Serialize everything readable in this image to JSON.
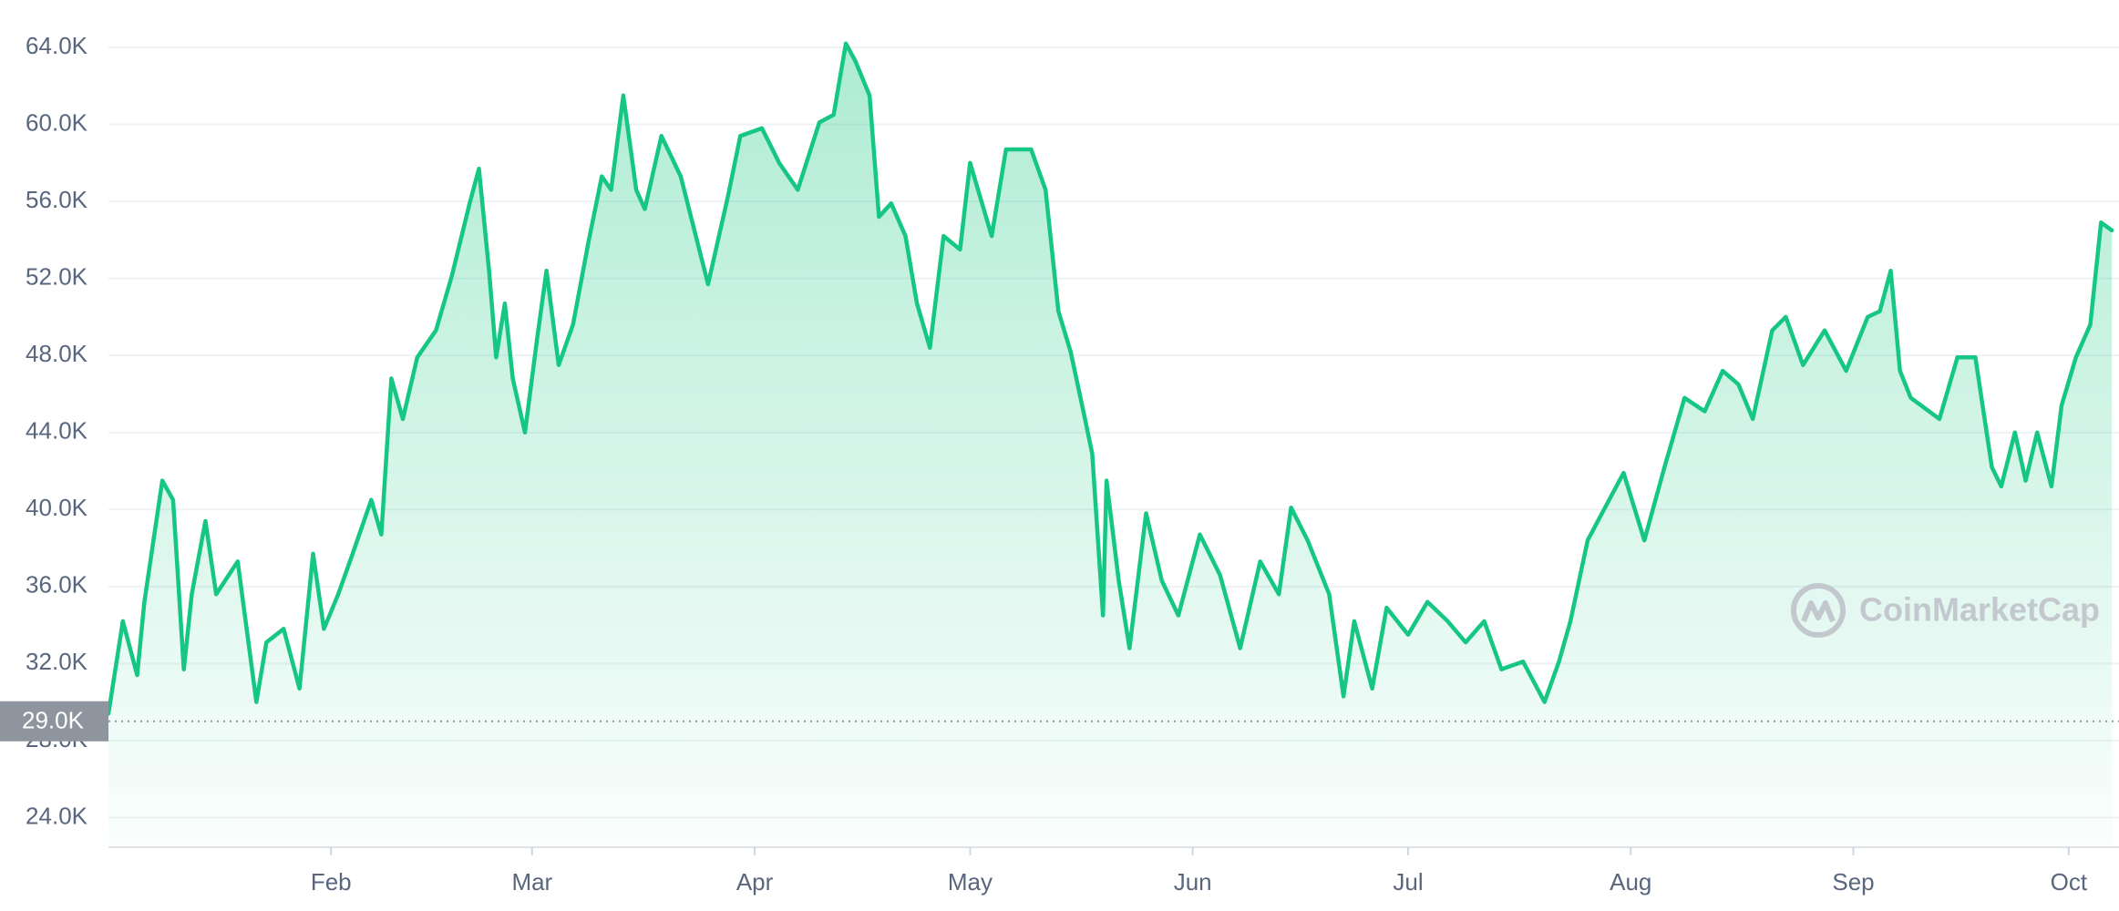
{
  "chart_data": {
    "type": "area",
    "color": "#16c784",
    "xlim": [
      0,
      280
    ],
    "xticks": [
      {
        "value": 31,
        "label": "Feb"
      },
      {
        "value": 59,
        "label": "Mar"
      },
      {
        "value": 90,
        "label": "Apr"
      },
      {
        "value": 120,
        "label": "May"
      },
      {
        "value": 151,
        "label": "Jun"
      },
      {
        "value": 181,
        "label": "Jul"
      },
      {
        "value": 212,
        "label": "Aug"
      },
      {
        "value": 243,
        "label": "Sep"
      },
      {
        "value": 273,
        "label": "Oct"
      }
    ],
    "ylim": [
      22460,
      66460
    ],
    "yticks": [
      {
        "value": 24000,
        "label": "24.0K"
      },
      {
        "value": 28000,
        "label": "28.0K"
      },
      {
        "value": 32000,
        "label": "32.0K"
      },
      {
        "value": 36000,
        "label": "36.0K"
      },
      {
        "value": 40000,
        "label": "40.0K"
      },
      {
        "value": 44000,
        "label": "44.0K"
      },
      {
        "value": 48000,
        "label": "48.0K"
      },
      {
        "value": 52000,
        "label": "52.0K"
      },
      {
        "value": 56000,
        "label": "56.0K"
      },
      {
        "value": 60000,
        "label": "60.0K"
      },
      {
        "value": 64000,
        "label": "64.0K"
      }
    ],
    "grid": true,
    "reference": {
      "value": 29000,
      "label": "29.0K"
    },
    "watermark": "CoinMarketCap",
    "x": [
      0,
      2,
      4,
      5,
      7.5,
      9,
      10.5,
      11.6,
      13.5,
      15,
      18,
      20.6,
      22,
      24.4,
      26.6,
      28.5,
      30,
      32,
      34,
      36.6,
      38,
      39.4,
      41,
      43,
      45.6,
      47.8,
      50.3,
      51.6,
      53,
      54,
      55.2,
      56.3,
      58,
      59.7,
      61,
      62.7,
      64.7,
      66.8,
      68.7,
      70,
      71.7,
      73.5,
      74.7,
      77,
      79.7,
      81.6,
      83.5,
      86.3,
      88,
      91,
      93.4,
      96,
      99,
      101,
      102.7,
      104,
      106,
      107.3,
      109,
      111,
      112.6,
      114.4,
      116.3,
      118.6,
      120,
      123,
      125,
      128.5,
      130.5,
      132.3,
      134,
      136,
      137,
      138.5,
      139,
      140.7,
      142.2,
      144.5,
      146.7,
      149,
      152,
      154.8,
      157.6,
      160.4,
      163,
      164.7,
      167,
      170,
      172,
      173.5,
      176,
      178,
      181,
      183.7,
      186.5,
      189,
      191.6,
      194,
      197,
      200,
      202,
      203.6,
      206,
      208,
      211,
      213.9,
      216.7,
      219.5,
      222.3,
      224.8,
      227,
      229,
      231.7,
      233.6,
      236,
      239,
      242,
      245,
      246.7,
      248.2,
      249.5,
      251,
      255,
      257.5,
      260,
      262.3,
      263.6,
      265.5,
      267,
      268.6,
      270.6,
      272,
      274,
      276,
      277.5,
      279
    ],
    "values": [
      29400,
      34200,
      31400,
      35200,
      41500,
      40500,
      31700,
      35600,
      39400,
      35600,
      37300,
      30000,
      33100,
      33800,
      30700,
      37700,
      33800,
      35600,
      37700,
      40500,
      38700,
      46800,
      44700,
      47900,
      49300,
      52100,
      55900,
      57700,
      52400,
      47900,
      50700,
      46800,
      44000,
      48900,
      52400,
      47500,
      49600,
      53800,
      57300,
      56600,
      61500,
      56600,
      55600,
      59400,
      57300,
      54500,
      51700,
      56300,
      59400,
      59800,
      58000,
      56600,
      60100,
      60500,
      64200,
      63300,
      61500,
      55200,
      55900,
      54200,
      50700,
      48400,
      54200,
      53500,
      58000,
      54200,
      58700,
      58700,
      56600,
      50300,
      48200,
      44700,
      42900,
      34500,
      41500,
      36300,
      32800,
      39800,
      36300,
      34500,
      38700,
      36600,
      32800,
      37300,
      35600,
      40100,
      38400,
      35600,
      30300,
      34200,
      30700,
      34900,
      33500,
      35200,
      34200,
      33100,
      34200,
      31700,
      32100,
      30000,
      32100,
      34200,
      38400,
      39800,
      41900,
      38400,
      42200,
      45800,
      45100,
      47200,
      46500,
      44700,
      49300,
      50000,
      47500,
      49300,
      47200,
      50000,
      50300,
      52400,
      47200,
      45800,
      44700,
      47900,
      47900,
      42200,
      41200,
      44000,
      41500,
      44000,
      41200,
      45400,
      47900,
      49600,
      54900,
      54500
    ]
  }
}
